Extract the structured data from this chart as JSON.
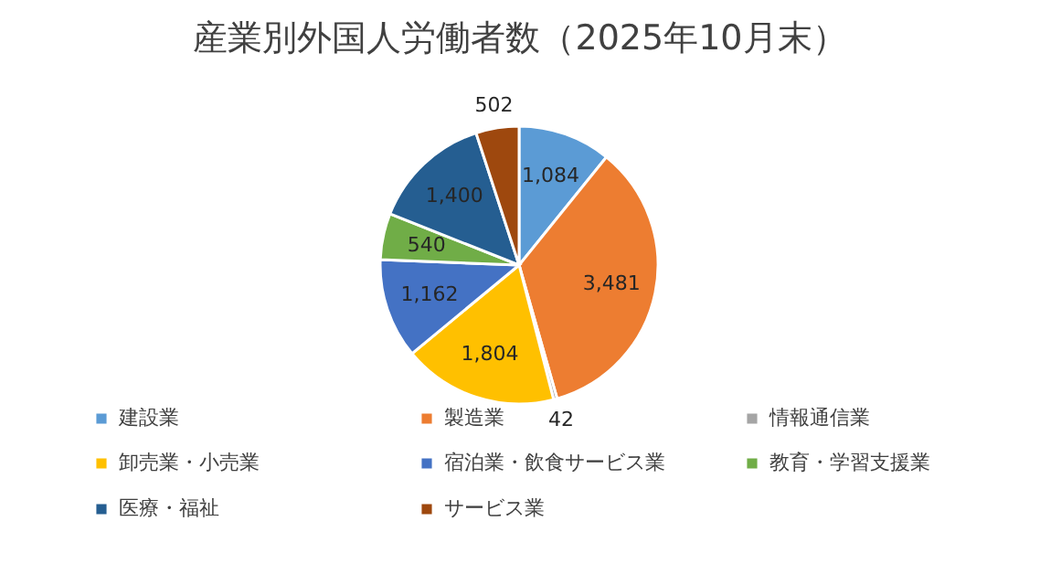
{
  "chart_data": {
    "type": "pie",
    "title": "産業別外国人労働者数（2025年10月末）",
    "categories": [
      "建設業",
      "製造業",
      "情報通信業",
      "卸売業・小売業",
      "宿泊業・飲食サービス業",
      "教育・学習支援業",
      "医療・福祉",
      "サービス業"
    ],
    "values": [
      1084,
      3481,
      42,
      1804,
      1162,
      540,
      1400,
      502
    ],
    "colors": [
      "#5b9bd5",
      "#ed7d31",
      "#a5a5a5",
      "#ffc000",
      "#4472c4",
      "#70ad47",
      "#255e91",
      "#9e480e"
    ],
    "value_labels": [
      "1,084",
      "3,481",
      "42",
      "1,804",
      "1,162",
      "540",
      "1,400",
      "502"
    ],
    "legend": "bottom"
  }
}
